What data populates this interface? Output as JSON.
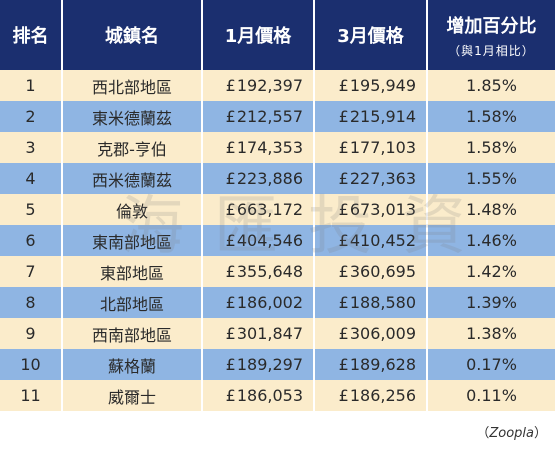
{
  "headers": {
    "rank": "排名",
    "region": "城鎮名",
    "jan": "1月價格",
    "mar": "3月價格",
    "increase": "增加百分比",
    "increase_sub": "（與1月相比）"
  },
  "currency_symbol": "£",
  "rows": [
    {
      "rank": "1",
      "region": "西北部地區",
      "jan": "192,397",
      "mar": "195,949",
      "pct": "1.85%"
    },
    {
      "rank": "2",
      "region": "東米德蘭茲",
      "jan": "212,557",
      "mar": "215,914",
      "pct": "1.58%"
    },
    {
      "rank": "3",
      "region": "克郡-亨伯",
      "jan": "174,353",
      "mar": "177,103",
      "pct": "1.58%"
    },
    {
      "rank": "4",
      "region": "西米德蘭茲",
      "jan": "223,886",
      "mar": "227,363",
      "pct": "1.55%"
    },
    {
      "rank": "5",
      "region": "倫敦",
      "jan": "663,172",
      "mar": "673,013",
      "pct": "1.48%"
    },
    {
      "rank": "6",
      "region": "東南部地區",
      "jan": "404,546",
      "mar": "410,452",
      "pct": "1.46%"
    },
    {
      "rank": "7",
      "region": "東部地區",
      "jan": "355,648",
      "mar": "360,695",
      "pct": "1.42%"
    },
    {
      "rank": "8",
      "region": "北部地區",
      "jan": "186,002",
      "mar": "188,580",
      "pct": "1.39%"
    },
    {
      "rank": "9",
      "region": "西南部地區",
      "jan": "301,847",
      "mar": "306,009",
      "pct": "1.38%"
    },
    {
      "rank": "10",
      "region": "蘇格蘭",
      "jan": "189,297",
      "mar": "189,628",
      "pct": "0.17%"
    },
    {
      "rank": "11",
      "region": "威爾士",
      "jan": "186,053",
      "mar": "186,256",
      "pct": "0.11%"
    }
  ],
  "watermark": "海匯投資",
  "source": {
    "open": "（",
    "name": "Zoopla",
    "close": "）"
  },
  "colors": {
    "header_bg": "#1b2f6f",
    "row_odd": "#fbeccb",
    "row_even": "#8fb5e3"
  },
  "chart_data": {
    "type": "table",
    "columns": [
      "排名",
      "城鎮名",
      "1月價格",
      "3月價格",
      "增加百分比（與1月相比）"
    ],
    "rows": [
      [
        1,
        "西北部地區",
        192397,
        195949,
        1.85
      ],
      [
        2,
        "東米德蘭茲",
        212557,
        215914,
        1.58
      ],
      [
        3,
        "克郡-亨伯",
        174353,
        177103,
        1.58
      ],
      [
        4,
        "西米德蘭茲",
        223886,
        227363,
        1.55
      ],
      [
        5,
        "倫敦",
        663172,
        673013,
        1.48
      ],
      [
        6,
        "東南部地區",
        404546,
        410452,
        1.46
      ],
      [
        7,
        "東部地區",
        355648,
        360695,
        1.42
      ],
      [
        8,
        "北部地區",
        186002,
        188580,
        1.39
      ],
      [
        9,
        "西南部地區",
        301847,
        306009,
        1.38
      ],
      [
        10,
        "蘇格蘭",
        189297,
        189628,
        0.17
      ],
      [
        11,
        "威爾士",
        186053,
        186256,
        0.11
      ]
    ]
  }
}
